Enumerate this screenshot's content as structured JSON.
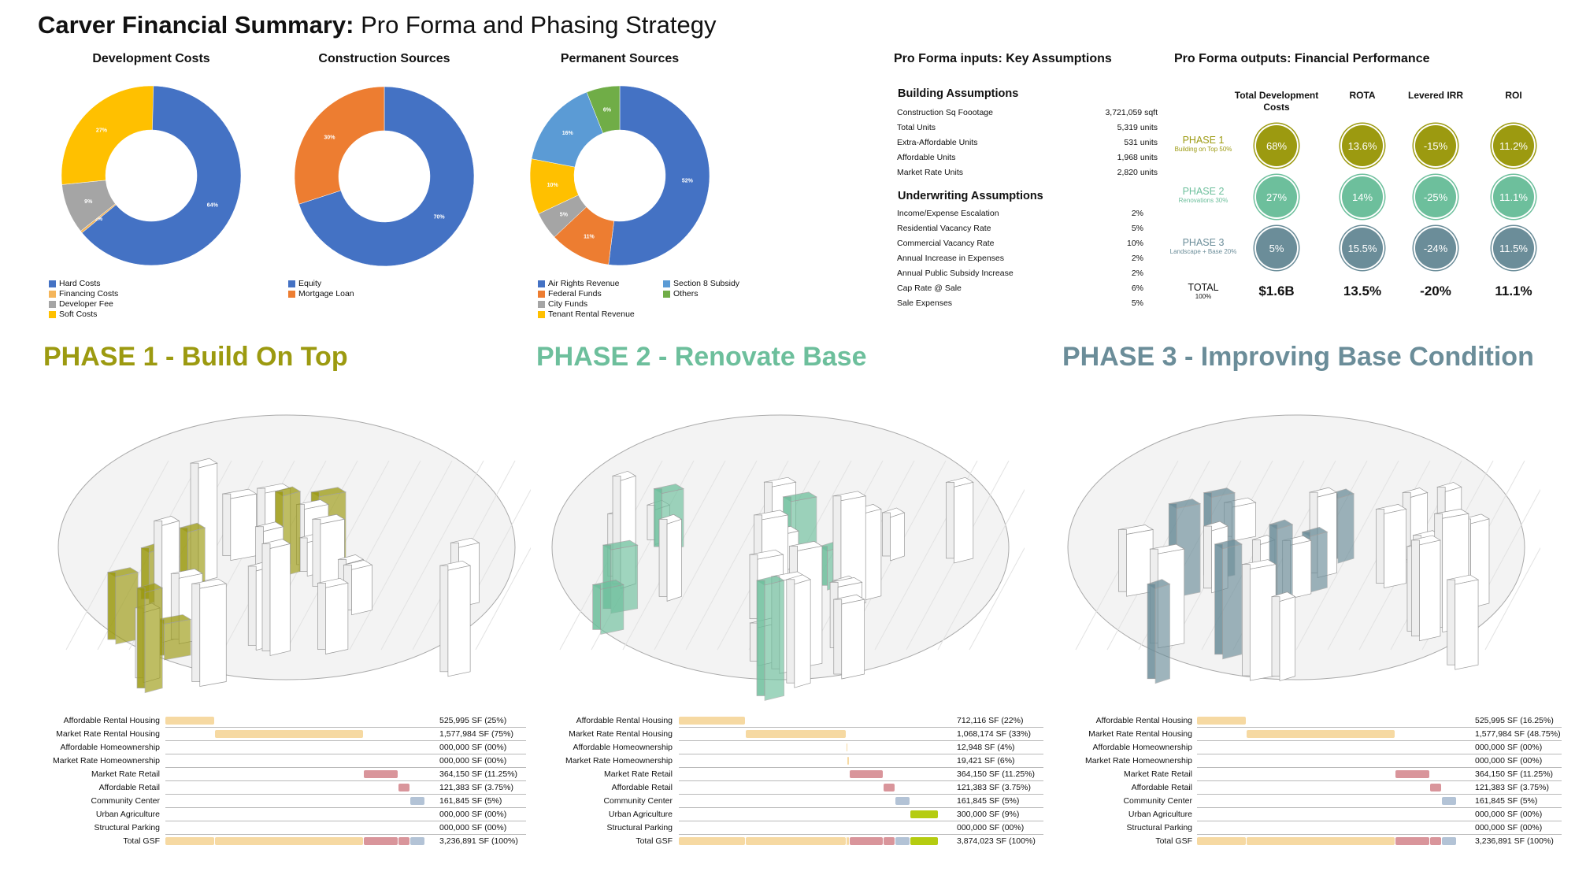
{
  "title": {
    "bold": "Carver Financial Summary:",
    "light": " Pro Forma and Phasing Strategy"
  },
  "colors": {
    "blue": "#4472c4",
    "orange": "#ed7d31",
    "light_orange": "#f4b55a",
    "gray": "#a5a5a5",
    "yellow": "#ffc000",
    "light_blue": "#5b9bd5",
    "green": "#70ad47",
    "phase1": "#9c9a10",
    "phase2": "#6dbf9c",
    "phase3": "#6b8d99",
    "bar_housing": "#f6d9a2",
    "bar_retail": "#d9959b",
    "bar_community": "#b3c3d6",
    "bar_agriculture": "#b5cc10"
  },
  "chart_data": [
    {
      "type": "pie",
      "donut": true,
      "title": "Development Costs",
      "labels": [
        "Hard Costs",
        "Financing Costs",
        "Developer Fee",
        "Soft Costs"
      ],
      "values": [
        64,
        0,
        9,
        27
      ],
      "data_labels": [
        "64%",
        "0%",
        "9%",
        "27%"
      ],
      "colors": [
        "#4472c4",
        "#f4b55a",
        "#a5a5a5",
        "#ffc000"
      ],
      "legend": "bottom"
    },
    {
      "type": "pie",
      "donut": true,
      "title": "Construction Sources",
      "labels": [
        "Equity",
        "Mortgage Loan"
      ],
      "values": [
        70,
        30
      ],
      "data_labels": [
        "70%",
        "30%"
      ],
      "colors": [
        "#4472c4",
        "#ed7d31"
      ],
      "legend": "bottom"
    },
    {
      "type": "pie",
      "donut": true,
      "title": "Permanent Sources",
      "labels": [
        "Air Rights Revenue",
        "Federal Funds",
        "City Funds",
        "Tenant Rental Revenue",
        "Section 8 Subsidy",
        "Others"
      ],
      "values": [
        52,
        11,
        5,
        10,
        16,
        6
      ],
      "data_labels": [
        "52%",
        "11%",
        "5%",
        "10%",
        "16%",
        "6%"
      ],
      "colors": [
        "#4472c4",
        "#ed7d31",
        "#a5a5a5",
        "#ffc000",
        "#5b9bd5",
        "#70ad47"
      ],
      "legend": "bottom"
    }
  ],
  "inputs": {
    "title": "Pro Forma inputs: Key Assumptions",
    "building": {
      "heading": "Building Assumptions",
      "rows": [
        {
          "label": "Construction Sq Foootage",
          "value": "3,721,059 sqft"
        },
        {
          "label": "Total Units",
          "value": "5,319 units"
        },
        {
          "label": "Extra-Affordable Units",
          "value": "531 units"
        },
        {
          "label": "Affordable Units",
          "value": "1,968 units"
        },
        {
          "label": "Market Rate Units",
          "value": "2,820 units"
        }
      ]
    },
    "underwriting": {
      "heading": "Underwriting Assumptions",
      "rows": [
        {
          "label": "Income/Expense Escalation",
          "value": "2%"
        },
        {
          "label": "Residential Vacancy Rate",
          "value": "5%"
        },
        {
          "label": "Commercial Vacancy Rate",
          "value": "10%"
        },
        {
          "label": "Annual Increase in Expenses",
          "value": "2%"
        },
        {
          "label": "Annual Public Subsidy Increase",
          "value": "2%"
        },
        {
          "label": "Cap Rate @ Sale",
          "value": "6%"
        },
        {
          "label": "Sale Expenses",
          "value": "5%"
        }
      ]
    }
  },
  "outputs": {
    "title": "Pro Forma outputs: Financial Performance",
    "columns": [
      "Total Development Costs",
      "ROTA",
      "Levered IRR",
      "ROI"
    ],
    "phases": [
      {
        "name": "PHASE 1",
        "sub": "Building on Top 50%",
        "values": [
          "68%",
          "13.6%",
          "-15%",
          "11.2%"
        ]
      },
      {
        "name": "PHASE 2",
        "sub": "Renovations 30%",
        "values": [
          "27%",
          "14%",
          "-25%",
          "11.1%"
        ]
      },
      {
        "name": "PHASE 3",
        "sub": "Landscape + Base 20%",
        "values": [
          "5%",
          "15.5%",
          "-24%",
          "11.5%"
        ]
      }
    ],
    "total": {
      "name": "TOTAL",
      "sub": "100%",
      "values": [
        "$1.6B",
        "13.5%",
        "-20%",
        "11.1%"
      ]
    }
  },
  "phases": [
    {
      "heading": "PHASE 1 - Build On Top",
      "highlight": "phase1",
      "table": [
        {
          "label": "Affordable Rental Housing",
          "value": "525,995 SF (25%)",
          "sf": 525995,
          "cat": "housing"
        },
        {
          "label": "Market Rate Rental Housing",
          "value": "1,577,984 SF (75%)",
          "sf": 1577984,
          "cat": "housing"
        },
        {
          "label": "Affordable Homeownership",
          "value": "000,000 SF (00%)",
          "sf": 0,
          "cat": "housing"
        },
        {
          "label": "Market Rate Homeownership",
          "value": "000,000 SF (00%)",
          "sf": 0,
          "cat": "housing"
        },
        {
          "label": "Market Rate Retail",
          "value": "364,150 SF (11.25%)",
          "sf": 364150,
          "cat": "retail"
        },
        {
          "label": "Affordable Retail",
          "value": "121,383 SF (3.75%)",
          "sf": 121383,
          "cat": "retail"
        },
        {
          "label": "Community Center",
          "value": "161,845 SF (5%)",
          "sf": 161845,
          "cat": "community"
        },
        {
          "label": "Urban Agriculture",
          "value": "000,000 SF (00%)",
          "sf": 0,
          "cat": "agriculture"
        },
        {
          "label": "Structural Parking",
          "value": "000,000 SF (00%)",
          "sf": 0,
          "cat": "parking"
        }
      ],
      "total": {
        "label": "Total GSF",
        "value": "3,236,891 SF (100%)"
      }
    },
    {
      "heading": "PHASE 2 - Renovate Base",
      "highlight": "phase2",
      "table": [
        {
          "label": "Affordable Rental Housing",
          "value": "712,116 SF (22%)",
          "sf": 712116,
          "cat": "housing"
        },
        {
          "label": "Market Rate Rental Housing",
          "value": "1,068,174 SF (33%)",
          "sf": 1068174,
          "cat": "housing"
        },
        {
          "label": "Affordable Homeownership",
          "value": "12,948 SF (4%)",
          "sf": 12948,
          "cat": "housing"
        },
        {
          "label": "Market Rate Homeownership",
          "value": "19,421 SF (6%)",
          "sf": 19421,
          "cat": "housing"
        },
        {
          "label": "Market Rate Retail",
          "value": "364,150 SF (11.25%)",
          "sf": 364150,
          "cat": "retail"
        },
        {
          "label": "Affordable Retail",
          "value": "121,383 SF (3.75%)",
          "sf": 121383,
          "cat": "retail"
        },
        {
          "label": "Community Center",
          "value": "161,845 SF (5%)",
          "sf": 161845,
          "cat": "community"
        },
        {
          "label": "Urban Agriculture",
          "value": "300,000 SF (9%)",
          "sf": 300000,
          "cat": "agriculture"
        },
        {
          "label": "Structural Parking",
          "value": "000,000 SF (00%)",
          "sf": 0,
          "cat": "parking"
        }
      ],
      "total": {
        "label": "Total GSF",
        "value": "3,874,023 SF (100%)"
      }
    },
    {
      "heading": "PHASE 3 - Improving Base Condition",
      "highlight": "phase3",
      "table": [
        {
          "label": "Affordable Rental Housing",
          "value": "525,995 SF (16.25%)",
          "sf": 525995,
          "cat": "housing"
        },
        {
          "label": "Market Rate Rental Housing",
          "value": "1,577,984 SF (48.75%)",
          "sf": 1577984,
          "cat": "housing"
        },
        {
          "label": "Affordable Homeownership",
          "value": "000,000 SF (00%)",
          "sf": 0,
          "cat": "housing"
        },
        {
          "label": "Market Rate Homeownership",
          "value": "000,000 SF (00%)",
          "sf": 0,
          "cat": "housing"
        },
        {
          "label": "Market Rate Retail",
          "value": "364,150 SF (11.25%)",
          "sf": 364150,
          "cat": "retail"
        },
        {
          "label": "Affordable Retail",
          "value": "121,383 SF (3.75%)",
          "sf": 121383,
          "cat": "retail"
        },
        {
          "label": "Community Center",
          "value": "161,845 SF (5%)",
          "sf": 161845,
          "cat": "community"
        },
        {
          "label": "Urban Agriculture",
          "value": "000,000 SF (00%)",
          "sf": 0,
          "cat": "agriculture"
        },
        {
          "label": "Structural Parking",
          "value": "000,000 SF (00%)",
          "sf": 0,
          "cat": "parking"
        }
      ],
      "total": {
        "label": "Total GSF",
        "value": "3,236,891 SF (100%)"
      }
    }
  ]
}
